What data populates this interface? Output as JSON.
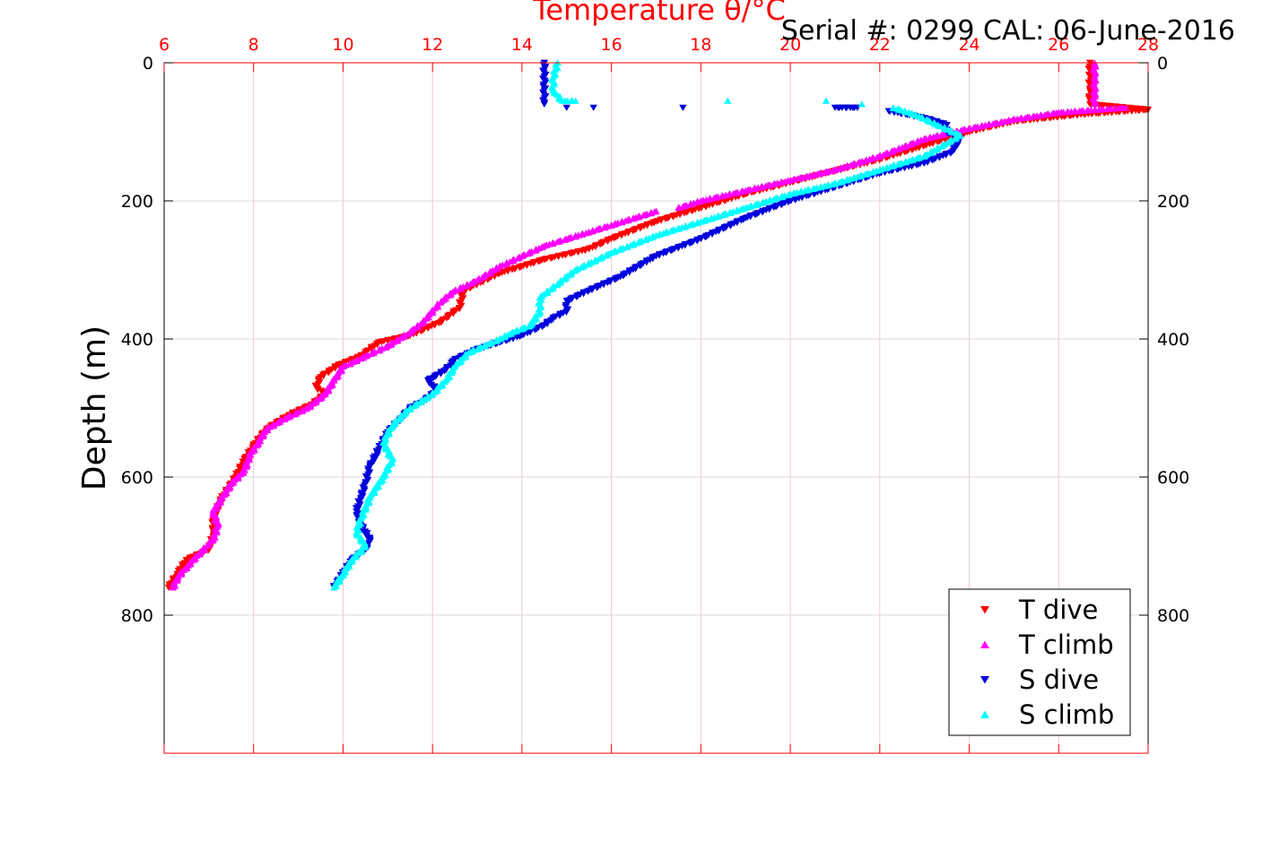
{
  "chart_data": {
    "type": "scatter",
    "title": "Temperature θ/°C",
    "annotation": "Serial #: 0299 CAL: 06-June-2016",
    "xlabel": "Temperature θ/°C",
    "ylabel": "Depth (m)",
    "xlim": [
      6,
      28
    ],
    "ylim": [
      0,
      1000
    ],
    "y_reversed": true,
    "grid": true,
    "legend_position": "bottom-right",
    "x_ticks": [
      "6",
      "8",
      "10",
      "12",
      "14",
      "16",
      "18",
      "20",
      "22",
      "24",
      "26",
      "28"
    ],
    "y_ticks": [
      "0",
      "200",
      "400",
      "600",
      "800"
    ],
    "colors": {
      "x_axis": "#ff0000",
      "grid": "#d9d9d9",
      "T_dive": "#ff0000",
      "T_climb": "#ff00ff",
      "S_dive": "#0000dd",
      "S_climb": "#00ffff"
    },
    "series": [
      {
        "name": "T dive",
        "marker": "triangle-down",
        "points": [
          [
            26.7,
            0
          ],
          [
            26.7,
            20
          ],
          [
            26.7,
            40
          ],
          [
            26.7,
            60
          ],
          [
            28,
            68
          ],
          [
            26.5,
            75
          ],
          [
            25,
            85
          ],
          [
            24,
            100
          ],
          [
            23,
            120
          ],
          [
            22,
            140
          ],
          [
            20.5,
            165
          ],
          [
            19,
            190
          ],
          [
            18,
            210
          ],
          [
            17,
            230
          ],
          [
            16,
            255
          ],
          [
            15.5,
            270
          ],
          [
            14.5,
            285
          ],
          [
            13.5,
            305
          ],
          [
            12.7,
            330
          ],
          [
            12.6,
            355
          ],
          [
            12.2,
            375
          ],
          [
            11.5,
            395
          ],
          [
            10.8,
            405
          ],
          [
            10.4,
            425
          ],
          [
            9.9,
            438
          ],
          [
            9.5,
            455
          ],
          [
            9.4,
            470
          ],
          [
            9.6,
            480
          ],
          [
            9.3,
            495
          ],
          [
            8.8,
            510
          ],
          [
            8.3,
            530
          ],
          [
            8,
            555
          ],
          [
            7.8,
            575
          ],
          [
            7.6,
            600
          ],
          [
            7.3,
            630
          ],
          [
            7.1,
            660
          ],
          [
            7.1,
            685
          ],
          [
            7,
            705
          ],
          [
            6.5,
            720
          ],
          [
            6.3,
            740
          ],
          [
            6.1,
            760
          ]
        ]
      },
      {
        "name": "T climb",
        "marker": "triangle-up",
        "points": [
          [
            26.8,
            0
          ],
          [
            26.8,
            20
          ],
          [
            26.8,
            40
          ],
          [
            26.8,
            60
          ],
          [
            27.5,
            65
          ],
          [
            26,
            72
          ],
          [
            25,
            82
          ],
          [
            24,
            95
          ],
          [
            23,
            110
          ],
          [
            22,
            135
          ],
          [
            21,
            155
          ],
          [
            20,
            170
          ],
          [
            19,
            185
          ],
          [
            18,
            200
          ],
          [
            17.5,
            210
          ],
          [
            17,
            215
          ],
          [
            16.5,
            225
          ],
          [
            16,
            235
          ],
          [
            15.5,
            245
          ],
          [
            15,
            255
          ],
          [
            14.5,
            265
          ],
          [
            14,
            280
          ],
          [
            13.5,
            295
          ],
          [
            13,
            315
          ],
          [
            12.5,
            330
          ],
          [
            12.2,
            345
          ],
          [
            12,
            360
          ],
          [
            11.8,
            375
          ],
          [
            11.5,
            390
          ],
          [
            11,
            410
          ],
          [
            10.5,
            425
          ],
          [
            10,
            440
          ],
          [
            9.8,
            460
          ],
          [
            9.6,
            480
          ],
          [
            9.2,
            500
          ],
          [
            8.7,
            515
          ],
          [
            8.3,
            530
          ],
          [
            8.1,
            550
          ],
          [
            7.9,
            570
          ],
          [
            7.8,
            590
          ],
          [
            7.5,
            610
          ],
          [
            7.3,
            630
          ],
          [
            7.1,
            650
          ],
          [
            7.2,
            670
          ],
          [
            7.1,
            690
          ],
          [
            6.8,
            710
          ],
          [
            6.5,
            730
          ],
          [
            6.3,
            745
          ],
          [
            6.2,
            760
          ]
        ]
      },
      {
        "name": "S dive",
        "marker": "triangle-down",
        "points": [
          [
            14.5,
            0
          ],
          [
            14.5,
            20
          ],
          [
            14.5,
            40
          ],
          [
            14.5,
            60
          ],
          [
            15.0,
            65
          ],
          [
            15.6,
            65
          ],
          [
            17.6,
            65
          ],
          [
            21,
            65
          ],
          [
            21.5,
            65
          ],
          [
            22.2,
            70
          ],
          [
            23,
            80
          ],
          [
            23.5,
            90
          ],
          [
            23.5,
            100
          ],
          [
            23.8,
            110
          ],
          [
            23.6,
            130
          ],
          [
            23,
            145
          ],
          [
            22,
            160
          ],
          [
            21,
            180
          ],
          [
            20,
            200
          ],
          [
            19,
            225
          ],
          [
            18,
            255
          ],
          [
            17,
            280
          ],
          [
            16.2,
            310
          ],
          [
            15.5,
            330
          ],
          [
            15,
            345
          ],
          [
            15,
            360
          ],
          [
            14.7,
            370
          ],
          [
            14.5,
            380
          ],
          [
            14,
            395
          ],
          [
            13.5,
            405
          ],
          [
            13,
            415
          ],
          [
            12.5,
            430
          ],
          [
            12.3,
            445
          ],
          [
            11.9,
            460
          ],
          [
            12.1,
            475
          ],
          [
            11.8,
            490
          ],
          [
            11.5,
            500
          ],
          [
            11.3,
            515
          ],
          [
            11,
            535
          ],
          [
            10.8,
            560
          ],
          [
            10.6,
            585
          ],
          [
            10.5,
            610
          ],
          [
            10.4,
            630
          ],
          [
            10.3,
            650
          ],
          [
            10.4,
            670
          ],
          [
            10.6,
            690
          ],
          [
            10.5,
            705
          ],
          [
            10.2,
            720
          ],
          [
            10,
            740
          ],
          [
            9.8,
            760
          ]
        ]
      },
      {
        "name": "S climb",
        "marker": "triangle-up",
        "points": [
          [
            14.8,
            0
          ],
          [
            14.7,
            20
          ],
          [
            14.7,
            40
          ],
          [
            14.9,
            55
          ],
          [
            15.2,
            55
          ],
          [
            18.6,
            55
          ],
          [
            20.8,
            55
          ],
          [
            21.6,
            60
          ],
          [
            22.3,
            65
          ],
          [
            22.8,
            75
          ],
          [
            23.3,
            90
          ],
          [
            23.8,
            105
          ],
          [
            23.4,
            120
          ],
          [
            23,
            135
          ],
          [
            22,
            155
          ],
          [
            21,
            175
          ],
          [
            20,
            190
          ],
          [
            19,
            210
          ],
          [
            18,
            230
          ],
          [
            17,
            250
          ],
          [
            16,
            275
          ],
          [
            15.2,
            300
          ],
          [
            14.8,
            320
          ],
          [
            14.4,
            340
          ],
          [
            14.4,
            360
          ],
          [
            14.2,
            380
          ],
          [
            13.8,
            390
          ],
          [
            13.5,
            400
          ],
          [
            12.8,
            420
          ],
          [
            12.5,
            440
          ],
          [
            12.3,
            460
          ],
          [
            12,
            480
          ],
          [
            11.5,
            500
          ],
          [
            11.1,
            525
          ],
          [
            10.9,
            550
          ],
          [
            11.1,
            575
          ],
          [
            10.9,
            600
          ],
          [
            10.6,
            630
          ],
          [
            10.4,
            660
          ],
          [
            10.3,
            680
          ],
          [
            10.5,
            700
          ],
          [
            10.2,
            720
          ],
          [
            10,
            740
          ],
          [
            9.8,
            760
          ]
        ]
      }
    ]
  }
}
